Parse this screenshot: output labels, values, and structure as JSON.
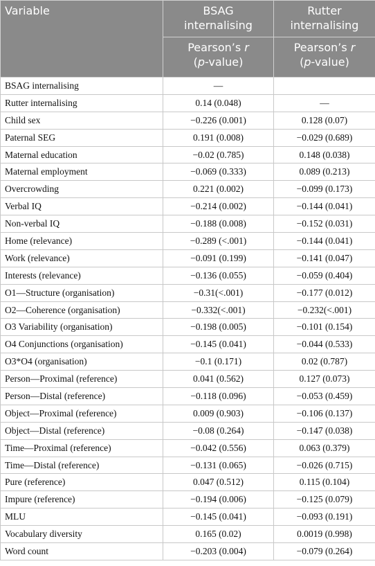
{
  "table": {
    "header": [
      "Variable",
      "BSAG internalising",
      "Rutter internalising"
    ],
    "subheader": [
      [
        [
          "Pearson’s",
          "r"
        ],
        [
          "(",
          "p",
          "-value)"
        ]
      ],
      [
        [
          "Pearson’s",
          "r"
        ],
        [
          "(",
          "p",
          "-value)"
        ]
      ]
    ],
    "rows": [
      [
        "BSAG internalising",
        "—",
        ""
      ],
      [
        "Rutter internalising",
        "0.14 (0.048)",
        "—"
      ],
      [
        "Child sex",
        "−0.226 (0.001)",
        "0.128 (0.07)"
      ],
      [
        "Paternal SEG",
        "0.191 (0.008)",
        "−0.029 (0.689)"
      ],
      [
        "Maternal education",
        "−0.02 (0.785)",
        "0.148 (0.038)"
      ],
      [
        "Maternal employment",
        "−0.069 (0.333)",
        "0.089 (0.213)"
      ],
      [
        "Overcrowding",
        "0.221 (0.002)",
        "−0.099 (0.173)"
      ],
      [
        "Verbal IQ",
        "−0.214 (0.002)",
        "−0.144 (0.041)"
      ],
      [
        "Non-verbal IQ",
        "−0.188 (0.008)",
        "−0.152 (0.031)"
      ],
      [
        "Home (relevance)",
        "−0.289 (<.001)",
        "−0.144 (0.041)"
      ],
      [
        "Work (relevance)",
        "−0.091 (0.199)",
        "−0.141 (0.047)"
      ],
      [
        "Interests (relevance)",
        "−0.136 (0.055)",
        "−0.059 (0.404)"
      ],
      [
        "O1—Structure (organisation)",
        "−0.31(<.001)",
        "−0.177 (0.012)"
      ],
      [
        "O2—Coherence (organisation)",
        "−0.332(<.001)",
        "−0.232(<.001)"
      ],
      [
        "O3 Variability (organisation)",
        "−0.198 (0.005)",
        "−0.101 (0.154)"
      ],
      [
        "O4 Conjunctions (organisation)",
        "−0.145 (0.041)",
        "−0.044 (0.533)"
      ],
      [
        "O3*O4 (organisation)",
        "−0.1 (0.171)",
        "0.02 (0.787)"
      ],
      [
        "Person—Proximal (reference)",
        "0.041 (0.562)",
        "0.127 (0.073)"
      ],
      [
        "Person—Distal (reference)",
        "−0.118 (0.096)",
        "−0.053 (0.459)"
      ],
      [
        "Object—Proximal (reference)",
        "0.009 (0.903)",
        "−0.106 (0.137)"
      ],
      [
        "Object—Distal (reference)",
        "−0.08 (0.264)",
        "−0.147 (0.038)"
      ],
      [
        "Time—Proximal (reference)",
        "−0.042 (0.556)",
        "0.063 (0.379)"
      ],
      [
        "Time—Distal (reference)",
        "−0.131 (0.065)",
        "−0.026 (0.715)"
      ],
      [
        "Pure (reference)",
        "0.047 (0.512)",
        "0.115 (0.104)"
      ],
      [
        "Impure (reference)",
        "−0.194 (0.006)",
        "−0.125 (0.079)"
      ],
      [
        "MLU",
        "−0.145 (0.041)",
        "−0.093 (0.191)"
      ],
      [
        "Vocabulary diversity",
        "0.165 (0.02)",
        "0.0019 (0.998)"
      ],
      [
        "Word count",
        "−0.203 (0.004)",
        "−0.079 (0.264)"
      ]
    ]
  }
}
